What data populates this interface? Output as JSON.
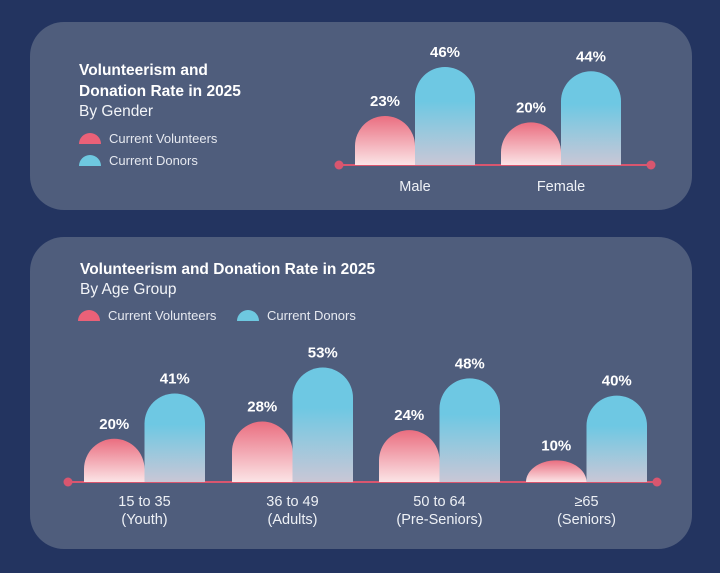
{
  "colors": {
    "background": "#233460",
    "panel": "#4f5d7c",
    "volunteers_top": "#ea6e80",
    "volunteers_bottom": "#fbe4e6",
    "donors_top": "#6ec8e3",
    "donors_bottom": "#c9c7d6",
    "axis": "#d9566f"
  },
  "chart_data": [
    {
      "type": "bar",
      "title": "Volunteerism and Donation Rate in 2025",
      "subtitle": "By Gender",
      "legend": [
        "Current Volunteers",
        "Current Donors"
      ],
      "legend_position": "left",
      "categories": [
        "Male",
        "Female"
      ],
      "series": [
        {
          "name": "Current Volunteers",
          "values": [
            23,
            20
          ],
          "labels": [
            "23%",
            "20%"
          ]
        },
        {
          "name": "Current Donors",
          "values": [
            46,
            44
          ],
          "labels": [
            "46%",
            "44%"
          ]
        }
      ],
      "xlabel": "",
      "ylabel": "",
      "ylim": [
        0,
        100
      ],
      "grid": false
    },
    {
      "type": "bar",
      "title": "Volunteerism and Donation Rate in 2025",
      "subtitle": "By Age Group",
      "legend": [
        "Current Volunteers",
        "Current Donors"
      ],
      "legend_position": "top-left",
      "categories": [
        [
          "15 to 35",
          "(Youth)"
        ],
        [
          "36 to 49",
          "(Adults)"
        ],
        [
          "50 to 64",
          "(Pre-Seniors)"
        ],
        [
          "≥65",
          "(Seniors)"
        ]
      ],
      "series": [
        {
          "name": "Current Volunteers",
          "values": [
            20,
            28,
            24,
            10
          ],
          "labels": [
            "20%",
            "28%",
            "24%",
            "10%"
          ]
        },
        {
          "name": "Current Donors",
          "values": [
            41,
            53,
            48,
            40
          ],
          "labels": [
            "41%",
            "53%",
            "48%",
            "40%"
          ]
        }
      ],
      "xlabel": "",
      "ylabel": "",
      "ylim": [
        0,
        100
      ],
      "grid": false
    }
  ],
  "gender_panel": {
    "title_line1": "Volunteerism and",
    "title_line2": "Donation Rate in 2025",
    "subtitle": "By Gender",
    "legend_volunteers": "Current Volunteers",
    "legend_donors": "Current Donors"
  },
  "age_panel": {
    "title": "Volunteerism and Donation Rate in 2025",
    "subtitle": "By Age Group",
    "legend_volunteers": "Current Volunteers",
    "legend_donors": "Current Donors"
  }
}
